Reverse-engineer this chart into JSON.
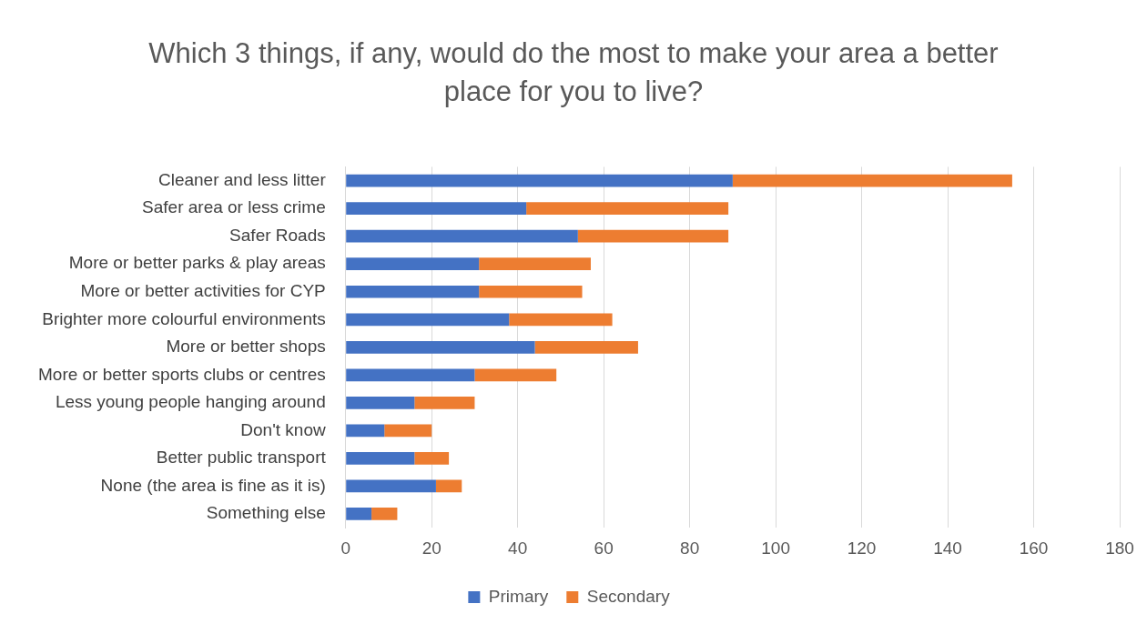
{
  "chart_data": {
    "type": "bar",
    "orientation": "horizontal",
    "stacked": true,
    "title": "Which 3 things, if any, would do the most to make your area a better place for you to live?",
    "categories": [
      "Cleaner and less litter",
      "Safer area or less crime",
      "Safer Roads",
      "More or better parks & play areas",
      "More or better activities for CYP",
      "Brighter more colourful environments",
      "More or better shops",
      "More or better sports clubs or centres",
      "Less young people hanging around",
      "Don't know",
      "Better public transport",
      "None (the area is fine as it is)",
      "Something else"
    ],
    "series": [
      {
        "name": "Primary",
        "color": "#4472c4",
        "values": [
          90,
          42,
          54,
          31,
          31,
          38,
          44,
          30,
          16,
          9,
          16,
          21,
          6
        ]
      },
      {
        "name": "Secondary",
        "color": "#ed7d31",
        "values": [
          65,
          47,
          35,
          26,
          24,
          24,
          24,
          19,
          14,
          11,
          8,
          6,
          6
        ]
      }
    ],
    "xlim": [
      0,
      180
    ],
    "xticks": [
      0,
      20,
      40,
      60,
      80,
      100,
      120,
      140,
      160,
      180
    ],
    "grid": "x",
    "legend": "bottom"
  }
}
